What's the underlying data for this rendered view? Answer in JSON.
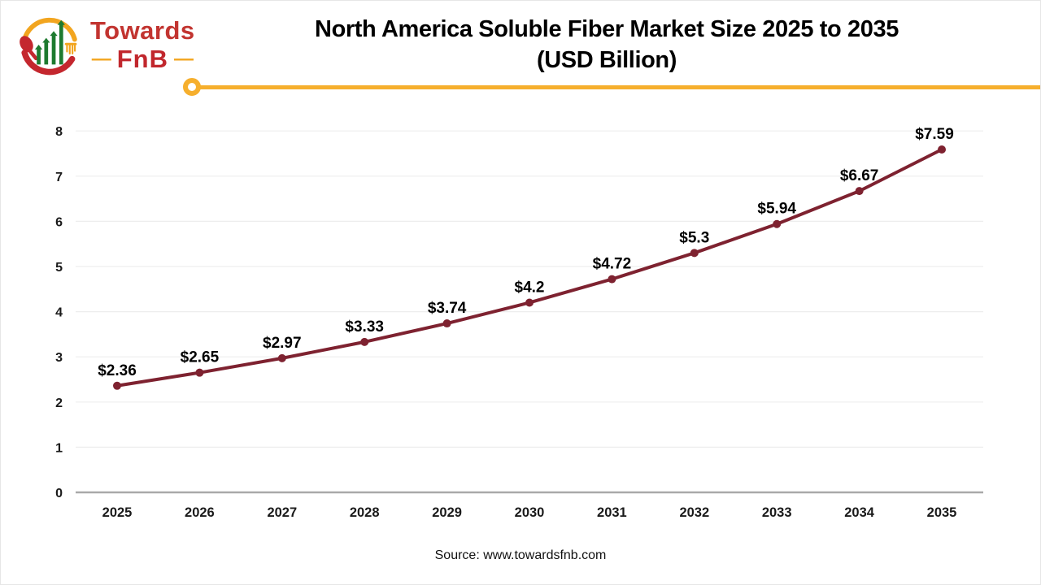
{
  "logo": {
    "brand_top": "Towards",
    "brand_bottom": "FnB",
    "dash": "—",
    "colors": {
      "red": "#c23430",
      "dark_red": "#c1272d",
      "green": "#1e7a2f",
      "yellow": "#f2a51f"
    }
  },
  "header": {
    "title_line1": "North America Soluble Fiber Market Size 2025 to 2035",
    "title_line2": "(USD Billion)",
    "divider_color": "#f6af2d"
  },
  "chart_data": {
    "type": "line",
    "title": "North America Soluble Fiber Market Size 2025 to 2035 (USD Billion)",
    "categories": [
      "2025",
      "2026",
      "2027",
      "2028",
      "2029",
      "2030",
      "2031",
      "2032",
      "2033",
      "2034",
      "2035"
    ],
    "values": [
      2.36,
      2.65,
      2.97,
      3.33,
      3.74,
      4.2,
      4.72,
      5.3,
      5.94,
      6.67,
      7.59
    ],
    "point_labels": [
      "$2.36",
      "$2.65",
      "$2.97",
      "$3.33",
      "$3.74",
      "$4.2",
      "$4.72",
      "$5.3",
      "$5.94",
      "$6.67",
      "$7.59"
    ],
    "xlabel": "",
    "ylabel": "",
    "ylim": [
      0,
      8
    ],
    "yticks": [
      0,
      1,
      2,
      3,
      4,
      5,
      6,
      7,
      8
    ],
    "grid": true,
    "legend": "none",
    "line_color": "#7e2230",
    "marker_color": "#7e2230",
    "grid_color": "#ededed",
    "axis_color": "#a9a9a9",
    "tick_label_color": "#1a1a1a",
    "data_label_color": "#000000"
  },
  "footer": {
    "source_text": "Source: www.towardsfnb.com"
  }
}
